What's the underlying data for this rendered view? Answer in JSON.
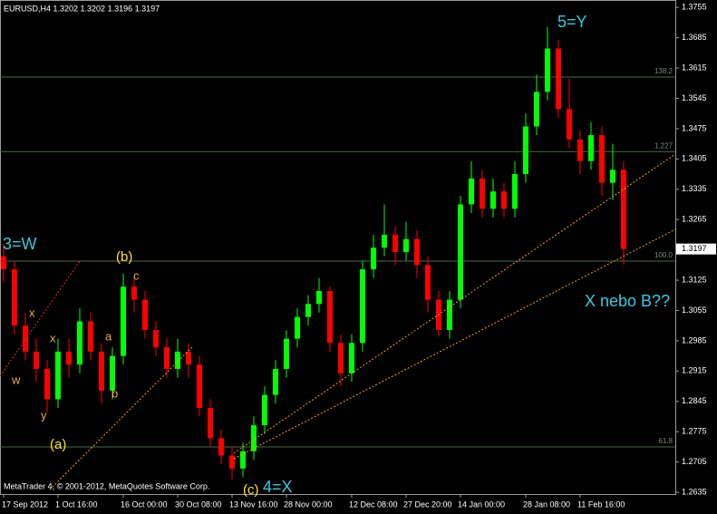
{
  "chart_data": {
    "type": "candlestick",
    "title": "EURUSD,H4  1.3202 1.3202 1.3196 1.3197",
    "footer": "MetaTrader 4, © 2001-2012, MetaQuotes Software Corp.",
    "categories": [
      "17 Sep 2012",
      null,
      null,
      null,
      null,
      "1 Oct 16:00",
      null,
      null,
      null,
      null,
      null,
      "16 Oct 00:00",
      null,
      null,
      null,
      null,
      "30 Oct 08:00",
      null,
      null,
      null,
      null,
      "13 Nov 16:00",
      null,
      null,
      null,
      null,
      "28 Nov 00:00",
      null,
      null,
      null,
      null,
      null,
      "12 Dec 08:00",
      null,
      null,
      null,
      null,
      "27 Dec 20:00",
      null,
      null,
      null,
      null,
      "14 Jan 00:00",
      null,
      null,
      null,
      null,
      null,
      "28 Jan 08:00",
      null,
      null,
      null,
      null,
      "11 Feb 16:00",
      null,
      null,
      null,
      null
    ],
    "open": [
      1.318,
      1.315,
      1.302,
      1.296,
      1.292,
      1.285,
      1.296,
      1.293,
      1.303,
      1.296,
      1.287,
      1.295,
      1.311,
      1.308,
      1.301,
      1.297,
      1.292,
      1.296,
      1.293,
      1.283,
      1.276,
      1.272,
      1.269,
      1.273,
      1.279,
      1.286,
      1.292,
      1.299,
      1.304,
      1.307,
      1.31,
      1.298,
      1.291,
      1.298,
      1.315,
      1.32,
      1.323,
      1.319,
      1.322,
      1.316,
      1.308,
      1.301,
      1.308,
      1.33,
      1.336,
      1.329,
      1.333,
      1.329,
      1.337,
      1.348,
      1.356,
      1.366,
      1.352,
      1.345,
      1.34,
      1.346,
      1.335,
      1.338
    ],
    "high": [
      1.321,
      1.317,
      1.305,
      1.299,
      1.294,
      1.299,
      1.299,
      1.306,
      1.305,
      1.298,
      1.297,
      1.314,
      1.313,
      1.31,
      1.303,
      1.299,
      1.299,
      1.298,
      1.295,
      1.285,
      1.278,
      1.274,
      1.275,
      1.281,
      1.288,
      1.294,
      1.301,
      1.306,
      1.309,
      1.313,
      1.311,
      1.3,
      1.3,
      1.317,
      1.323,
      1.33,
      1.325,
      1.326,
      1.324,
      1.318,
      1.31,
      1.31,
      1.332,
      1.34,
      1.338,
      1.336,
      1.335,
      1.34,
      1.351,
      1.36,
      1.371,
      1.368,
      1.359,
      1.347,
      1.349,
      1.348,
      1.344,
      1.34
    ],
    "low": [
      1.312,
      1.3,
      1.294,
      1.289,
      1.282,
      1.283,
      1.29,
      1.291,
      1.294,
      1.284,
      1.285,
      1.293,
      1.305,
      1.299,
      1.295,
      1.29,
      1.29,
      1.29,
      1.281,
      1.274,
      1.27,
      1.2665,
      1.267,
      1.271,
      1.277,
      1.284,
      1.29,
      1.297,
      1.302,
      1.305,
      1.296,
      1.288,
      1.289,
      1.296,
      1.313,
      1.318,
      1.316,
      1.317,
      1.313,
      1.305,
      1.2995,
      1.299,
      1.306,
      1.328,
      1.327,
      1.327,
      1.327,
      1.327,
      1.335,
      1.346,
      1.354,
      1.35,
      1.343,
      1.337,
      1.338,
      1.332,
      1.331,
      1.316
    ],
    "close": [
      1.315,
      1.302,
      1.296,
      1.292,
      1.285,
      1.296,
      1.293,
      1.303,
      1.296,
      1.287,
      1.295,
      1.311,
      1.308,
      1.301,
      1.297,
      1.292,
      1.296,
      1.293,
      1.283,
      1.276,
      1.272,
      1.269,
      1.273,
      1.279,
      1.286,
      1.292,
      1.299,
      1.304,
      1.307,
      1.31,
      1.298,
      1.291,
      1.298,
      1.315,
      1.32,
      1.323,
      1.319,
      1.322,
      1.316,
      1.308,
      1.301,
      1.308,
      1.33,
      1.336,
      1.329,
      1.333,
      1.329,
      1.337,
      1.348,
      1.356,
      1.366,
      1.352,
      1.345,
      1.34,
      1.346,
      1.335,
      1.338,
      1.3197
    ],
    "up_color": "#00ff00",
    "down_color": "#ff0000",
    "ylim": [
      1.2631,
      1.377
    ],
    "yticks": [
      1.3755,
      1.3685,
      1.3615,
      1.3545,
      1.3475,
      1.3405,
      1.3335,
      1.3265,
      1.3125,
      1.3055,
      1.2985,
      1.2915,
      1.2845,
      1.2775,
      1.2705,
      1.2635
    ],
    "current_price": 1.3197,
    "levels": [
      {
        "value": 1.3594,
        "label": "138.2"
      },
      {
        "value": 1.3422,
        "label": "1.227"
      },
      {
        "value": 1.3169,
        "label": "100.0"
      },
      {
        "value": 1.274,
        "label": "61.8"
      }
    ],
    "annotations": [
      "3=W",
      "5=Y",
      "X nebo B??",
      "4=X",
      "(c)",
      "(b)",
      "(a)",
      "w",
      "x",
      "x",
      "y",
      "a",
      "b",
      "c"
    ]
  }
}
